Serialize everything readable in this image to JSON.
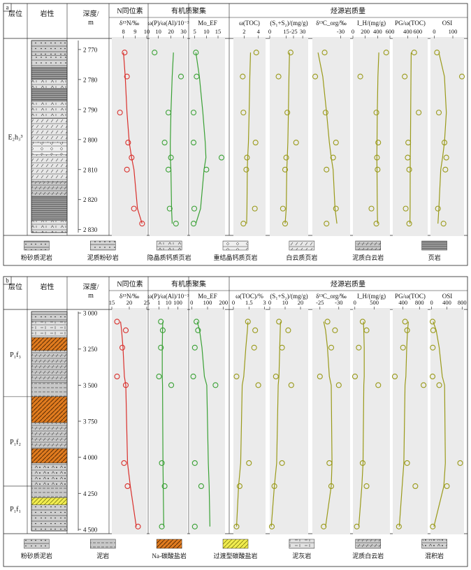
{
  "panels": [
    {
      "label": "a",
      "headers": {
        "layer": "层位",
        "lith": "岩性",
        "depth": "深度/\nm",
        "n_group": "N同位素",
        "org_group": "有机质聚集",
        "src_group": "烃源岩质量"
      },
      "depth_range": [
        2767,
        2831
      ],
      "depth_ticks": [
        2770,
        2780,
        2790,
        2800,
        2810,
        2820,
        2830
      ],
      "depth_tick_labels": [
        "2 770",
        "2 780",
        "2 790",
        "2 800",
        "2 810",
        "2 820",
        "2 830"
      ],
      "formations": [
        {
          "text": "E₂h₃³",
          "from": 2767,
          "to": 2831
        }
      ],
      "sample_depths": [
        2771,
        2779,
        2791,
        2801,
        2806,
        2810,
        2823,
        2828
      ],
      "tracks": [
        {
          "title": "δ¹⁵N/‰",
          "color": "#d9302c",
          "range": [
            7,
            10
          ],
          "ticks": [
            8,
            9,
            10
          ],
          "tick_labels": [
            "8",
            "9",
            "10"
          ],
          "values": [
            8.1,
            8.3,
            7.7,
            8.4,
            8.7,
            8.3,
            8.9,
            9.6
          ],
          "trend": [
            8.0,
            8.15,
            8.3,
            8.5,
            8.7,
            8.9,
            9.2,
            9.6
          ]
        },
        {
          "title": "ω(P)/ω(Al)/10⁻³",
          "color": "#3aa135",
          "range": [
            3,
            33
          ],
          "ticks": [
            10,
            20,
            30
          ],
          "tick_labels": [
            "10",
            "20",
            "30"
          ],
          "values": [
            7,
            28,
            18,
            15,
            20,
            18,
            19,
            24
          ],
          "trend": [
            22,
            21,
            20,
            19.5,
            19.5,
            20,
            20.5,
            21
          ]
        },
        {
          "title": "Mo_EF",
          "color": "#3aa135",
          "range": [
            3,
            18
          ],
          "ticks": [
            5,
            10,
            15
          ],
          "tick_labels": [
            "5",
            "10",
            "15"
          ],
          "values": [
            5.5,
            5.8,
            4.5,
            4.5,
            16.5,
            10,
            4.8,
            4.5
          ],
          "trend": [
            5.5,
            7,
            8.5,
            9.5,
            9.8,
            9,
            7.5,
            5.5
          ]
        },
        {
          "title": "ω(TOC)",
          "color": "#9a9a1a",
          "range": [
            0.5,
            5
          ],
          "ticks": [
            2,
            4
          ],
          "tick_labels": [
            "2",
            "4"
          ],
          "values": [
            3.7,
            1.8,
            1.9,
            3.6,
            2.4,
            2.3,
            3.5,
            1.9
          ],
          "trend": [
            2.9,
            2.8,
            2.7,
            2.6,
            2.5,
            2.45,
            2.4,
            2.35
          ]
        },
        {
          "title": "(S₁+S₂)/(mg/g)",
          "color": "#9a9a1a",
          "range": [
            0,
            35
          ],
          "ticks": [
            0,
            15,
            30
          ],
          "tick_labels": [
            "0",
            "15",
            "30"
          ],
          "values": [
            19,
            8,
            16,
            24,
            15,
            14,
            12,
            14
          ],
          "trend": [
            18,
            17.5,
            17,
            16.5,
            16,
            15.5,
            15,
            14
          ]
        },
        {
          "title": "δ¹³C_org/‰",
          "color": "#9a9a1a",
          "range": [
            -27,
            -31
          ],
          "ticks": [
            -25,
            -30
          ],
          "tick_labels": [
            "-25",
            "-30"
          ],
          "values": [
            -28.3,
            -27.3,
            -28.4,
            -29.5,
            -29.2,
            -28.5,
            -29.5,
            -28.5
          ],
          "trend": [
            -27.6,
            -28.1,
            -28.5,
            -28.8,
            -29.0,
            -29.2,
            -29.4,
            -29.6
          ]
        },
        {
          "title": "I_H/(mg/g)",
          "color": "#9a9a1a",
          "range": [
            0,
            600
          ],
          "ticks": [
            0,
            200,
            400,
            600
          ],
          "tick_labels": [
            "0",
            "200",
            "400",
            "600"
          ],
          "values": [
            540,
            120,
            380,
            410,
            390,
            400,
            300,
            380
          ],
          "trend": [
            420,
            405,
            395,
            390,
            388,
            390,
            395,
            400
          ]
        },
        {
          "title": "PG/ω(TOC)",
          "color": "#9a9a1a",
          "range": [
            100,
            800
          ],
          "ticks": [
            400,
            600
          ],
          "tick_labels": [
            "400",
            "600"
          ],
          "values": [
            530,
            340,
            620,
            410,
            400,
            430,
            360,
            430
          ],
          "trend": [
            470,
            465,
            460,
            455,
            452,
            450,
            448,
            445
          ]
        },
        {
          "title": "OSI",
          "color": "#9a9a1a",
          "range": [
            -20,
            160
          ],
          "ticks": [
            0,
            100
          ],
          "tick_labels": [
            "0",
            "100"
          ],
          "values": [
            15,
            165,
            25,
            55,
            65,
            60,
            20,
            50
          ],
          "trend": [
            25,
            55,
            65,
            55,
            45,
            35,
            25,
            20
          ]
        }
      ],
      "lith_intervals": [
        {
          "from": 2767,
          "to": 2772,
          "pat": "silt-mud"
        },
        {
          "from": 2772,
          "to": 2776,
          "pat": "mud-silt"
        },
        {
          "from": 2776,
          "to": 2780,
          "pat": "shale"
        },
        {
          "from": 2780,
          "to": 2783,
          "pat": "micrite"
        },
        {
          "from": 2783,
          "to": 2787,
          "pat": "shale"
        },
        {
          "from": 2787,
          "to": 2793,
          "pat": "micrite"
        },
        {
          "from": 2793,
          "to": 2801,
          "pat": "dolo-shale"
        },
        {
          "from": 2801,
          "to": 2805,
          "pat": "recryst"
        },
        {
          "from": 2805,
          "to": 2814,
          "pat": "dolo-shale"
        },
        {
          "from": 2814,
          "to": 2819,
          "pat": "mud-dolo"
        },
        {
          "from": 2819,
          "to": 2827,
          "pat": "shale"
        },
        {
          "from": 2827,
          "to": 2831,
          "pat": "micrite"
        }
      ],
      "legend": [
        {
          "label": "粉砂质泥岩",
          "pat": "silt-mud"
        },
        {
          "label": "泥质粉砂岩",
          "pat": "mud-silt"
        },
        {
          "label": "隐晶质钙质页岩",
          "pat": "micrite"
        },
        {
          "label": "重结晶钙质页岩",
          "pat": "recryst"
        },
        {
          "label": "白云质页岩",
          "pat": "dolo-shale"
        },
        {
          "label": "泥质白云岩",
          "pat": "mud-dolo"
        },
        {
          "label": "页岩",
          "pat": "shale"
        }
      ]
    },
    {
      "label": "b",
      "headers": {
        "layer": "层位",
        "lith": "岩性",
        "depth": "深度/\nm",
        "n_group": "N同位素",
        "org_group": "有机质聚集",
        "src_group": "烃源岩质量"
      },
      "depth_range": [
        2990,
        4510
      ],
      "depth_ticks": [
        3000,
        3250,
        3500,
        3750,
        4000,
        4250,
        4500
      ],
      "depth_tick_labels": [
        "3 000",
        "3 250",
        "3 500",
        "3 750",
        "4 000",
        "4 250",
        "4 500"
      ],
      "formations": [
        {
          "text": "P₁f₃",
          "from": 2990,
          "to": 3580
        },
        {
          "text": "P₁f₂",
          "from": 3580,
          "to": 4200
        },
        {
          "text": "P₁f₁",
          "from": 4200,
          "to": 4510
        }
      ],
      "sample_depths": [
        3060,
        3120,
        3240,
        3440,
        3500,
        4040,
        4200,
        4480
      ],
      "tracks": [
        {
          "title": "δ¹⁵N/‰",
          "color": "#d9302c",
          "range": [
            15,
            25
          ],
          "ticks": [
            15,
            20,
            25
          ],
          "tick_labels": [
            "15",
            "20",
            "25"
          ],
          "values": [
            16.5,
            19,
            18,
            16.5,
            19,
            18.5,
            19.5,
            22.5
          ],
          "trend": [
            17.5,
            17.8,
            18.2,
            18.6,
            19,
            19.5,
            20.3,
            22
          ]
        },
        {
          "title": "ω(P)/ω(Al)/10⁻³",
          "color": "#3aa135",
          "range": [
            0,
            4
          ],
          "ticks": [
            1,
            2.0,
            3.0
          ],
          "tick_labels": [
            "1",
            "10",
            "100"
          ],
          "values": [
            1.2,
            1.4,
            1.2,
            1.0,
            2.3,
            1.3,
            1.6,
            1.3
          ],
          "trend": [
            1.4,
            1.38,
            1.35,
            1.35,
            1.38,
            1.42,
            1.45,
            1.5
          ]
        },
        {
          "title": "Mo_EF",
          "color": "#3aa135",
          "range": [
            -10,
            210
          ],
          "ticks": [
            0,
            100,
            200
          ],
          "tick_labels": [
            "0",
            "100",
            "200"
          ],
          "values": [
            30,
            40,
            20,
            10,
            150,
            20,
            60,
            20
          ],
          "trend": [
            35,
            50,
            65,
            80,
            95,
            105,
            110,
            115
          ]
        },
        {
          "title": "ω(TOC)/%",
          "color": "#9a9a1a",
          "range": [
            0,
            3.1
          ],
          "ticks": [
            0,
            1.5,
            3
          ],
          "tick_labels": [
            "0",
            "1.5",
            "3"
          ],
          "values": [
            1.4,
            2.1,
            2.0,
            0.3,
            2.4,
            1.5,
            0.6,
            0.3
          ],
          "trend": [
            1.4,
            1.35,
            1.2,
            1.0,
            0.85,
            0.7,
            0.5,
            0.3
          ]
        },
        {
          "title": "(S₁+S₂)/(mg/g)",
          "color": "#9a9a1a",
          "range": [
            0,
            25
          ],
          "ticks": [
            0,
            10,
            20
          ],
          "tick_labels": [
            "0",
            "10",
            "20"
          ],
          "values": [
            6,
            12,
            8,
            4,
            14,
            8,
            3,
            1
          ],
          "trend": [
            7,
            6.8,
            6.5,
            6,
            5.5,
            4.5,
            3,
            1
          ]
        },
        {
          "title": "δ¹³C_org/‰",
          "color": "#9a9a1a",
          "range": [
            -23,
            -33
          ],
          "ticks": [
            -25,
            -30
          ],
          "tick_labels": [
            "-25",
            "-30"
          ],
          "values": [
            -27,
            -29,
            -28,
            -25,
            -30,
            -27.5,
            -28,
            -26
          ],
          "trend": [
            -26,
            -26.5,
            -27,
            -27.5,
            -28,
            -28.2,
            -28,
            -26.5
          ]
        },
        {
          "title": "I_H/(mg/g)",
          "color": "#9a9a1a",
          "range": [
            -50,
            900
          ],
          "ticks": [
            0,
            500
          ],
          "tick_labels": [
            "0",
            "500"
          ],
          "values": [
            200,
            300,
            100,
            0,
            600,
            200,
            300,
            50
          ],
          "trend": [
            220,
            230,
            240,
            240,
            230,
            210,
            180,
            100
          ]
        },
        {
          "title": "PG/ω(TOC)",
          "color": "#9a9a1a",
          "range": [
            150,
            1000
          ],
          "ticks": [
            400,
            800
          ],
          "tick_labels": [
            "400",
            "800"
          ],
          "values": [
            450,
            500,
            400,
            200,
            900,
            500,
            700,
            300
          ],
          "trend": [
            530,
            510,
            490,
            470,
            450,
            420,
            380,
            310
          ]
        },
        {
          "title": "OSI",
          "color": "#9a9a1a",
          "range": [
            -30,
            850
          ],
          "ticks": [
            0,
            400,
            800
          ],
          "tick_labels": [
            "0",
            "400",
            "800"
          ],
          "values": [
            20,
            40,
            30,
            10,
            200,
            750,
            400,
            30
          ],
          "trend": [
            40,
            120,
            200,
            280,
            340,
            360,
            320,
            60
          ]
        }
      ],
      "lith_intervals": [
        {
          "from": 2990,
          "to": 3060,
          "pat": "silt-mud"
        },
        {
          "from": 3060,
          "to": 3170,
          "pat": "marl"
        },
        {
          "from": 3170,
          "to": 3260,
          "pat": "na-carb"
        },
        {
          "from": 3260,
          "to": 3480,
          "pat": "mud-dolo"
        },
        {
          "from": 3480,
          "to": 3580,
          "pat": "mud"
        },
        {
          "from": 3580,
          "to": 3760,
          "pat": "na-carb"
        },
        {
          "from": 3760,
          "to": 3940,
          "pat": "mud-dolo"
        },
        {
          "from": 3940,
          "to": 4040,
          "pat": "na-carb"
        },
        {
          "from": 4040,
          "to": 4200,
          "pat": "mixed"
        },
        {
          "from": 4200,
          "to": 4280,
          "pat": "mud"
        },
        {
          "from": 4280,
          "to": 4330,
          "pat": "trans"
        },
        {
          "from": 4330,
          "to": 4510,
          "pat": "silt-mud"
        }
      ],
      "legend": [
        {
          "label": "粉砂质泥岩",
          "pat": "silt-mud"
        },
        {
          "label": "泥岩",
          "pat": "mud"
        },
        {
          "label": "Na-碳酸盐岩",
          "pat": "na-carb"
        },
        {
          "label": "过渡型碳酸盐岩",
          "pat": "trans"
        },
        {
          "label": "泥灰岩",
          "pat": "marl"
        },
        {
          "label": "泥质白云岩",
          "pat": "mud-dolo"
        },
        {
          "label": "混积岩",
          "pat": "mixed"
        }
      ]
    }
  ]
}
